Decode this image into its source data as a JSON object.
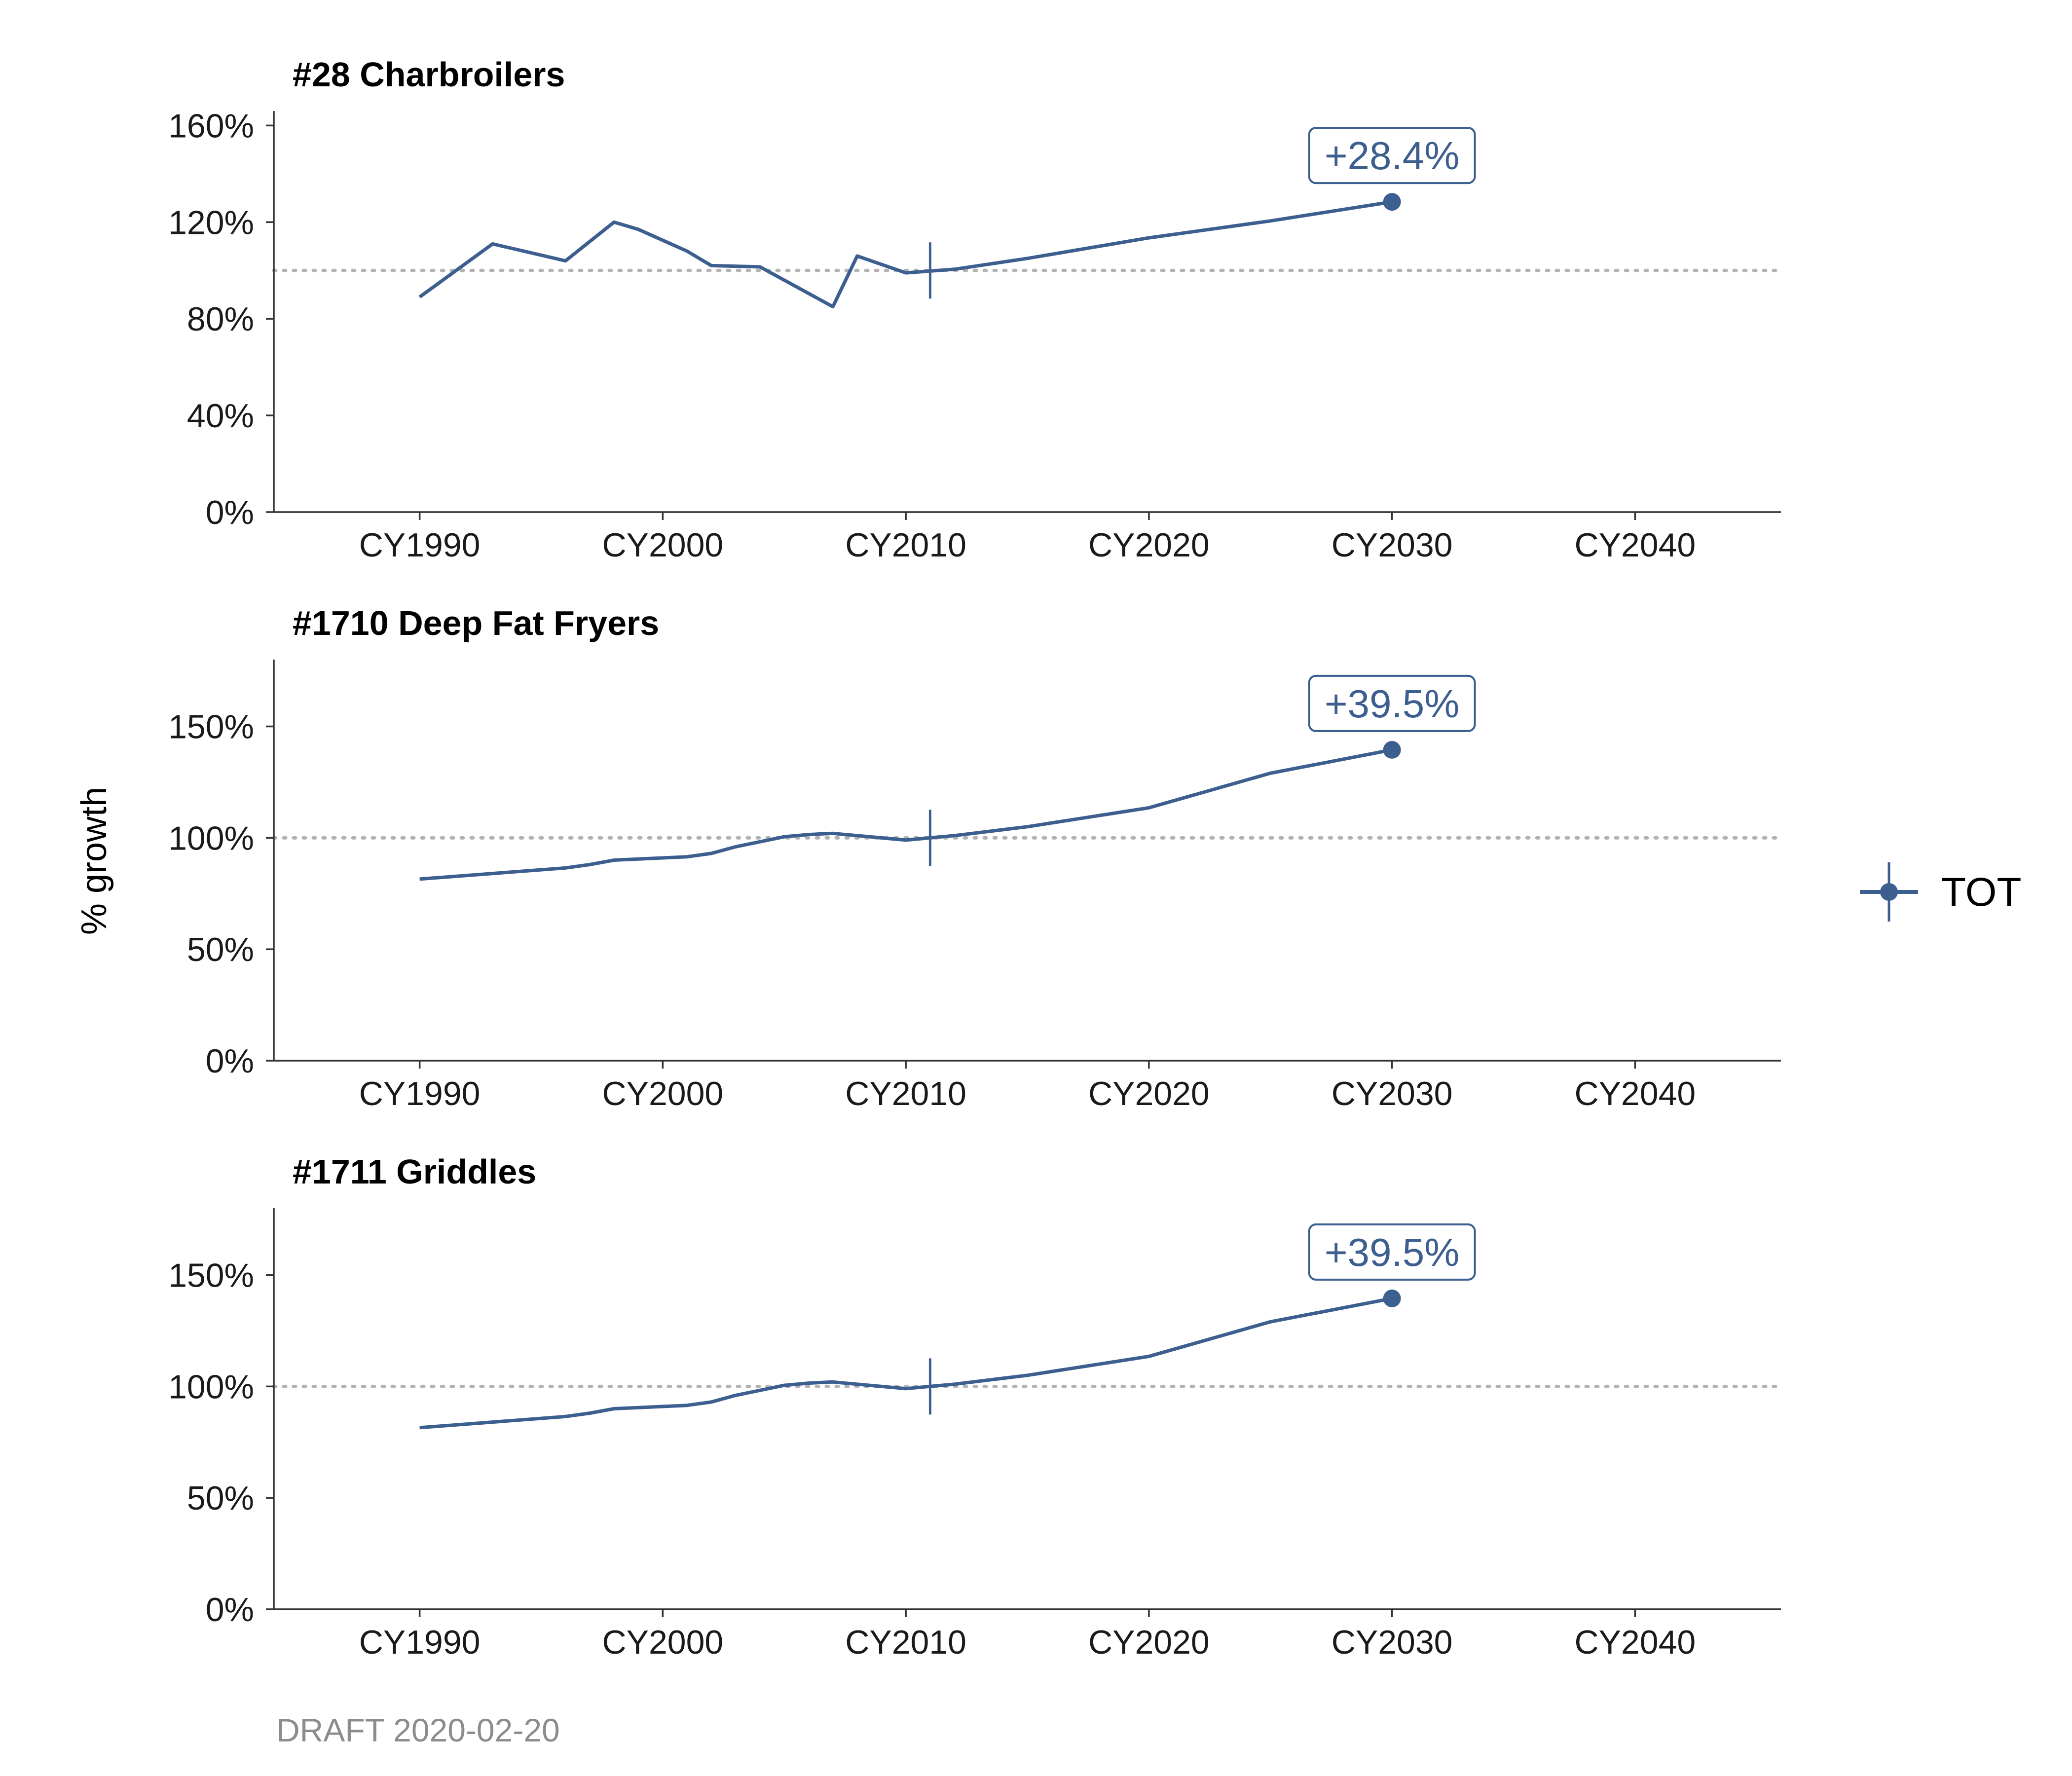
{
  "y_axis_label": "% growth",
  "caption": "DRAFT 2020-02-20",
  "legend": {
    "label": "TOT"
  },
  "colors": {
    "series": "#3d5f8f",
    "reference_line": "#b3b3b3",
    "axis": "#333333",
    "caption": "#8c8c8c"
  },
  "chart_data": [
    {
      "type": "line",
      "title": "#28 Charbroilers",
      "ylim": [
        0,
        1.66
      ],
      "yticks": [
        0,
        0.4,
        0.8,
        1.2,
        1.6
      ],
      "ytick_labels": [
        "0%",
        "40%",
        "80%",
        "120%",
        "160%"
      ],
      "xlim": [
        1984,
        2046
      ],
      "xticks": [
        1990,
        2000,
        2010,
        2020,
        2030,
        2040
      ],
      "xtick_labels": [
        "CY1990",
        "CY2000",
        "CY2010",
        "CY2020",
        "CY2030",
        "CY2040"
      ],
      "reference_line": 1.0,
      "base_year_marker": 2011,
      "series": [
        {
          "name": "TOT",
          "x": [
            1990,
            1993,
            1996,
            1998,
            1999,
            2001,
            2002,
            2004,
            2007,
            2008,
            2010,
            2012,
            2015,
            2020,
            2025,
            2030
          ],
          "y": [
            0.89,
            1.11,
            1.04,
            1.2,
            1.17,
            1.08,
            1.02,
            1.015,
            0.85,
            1.06,
            0.99,
            1.005,
            1.05,
            1.135,
            1.205,
            1.284
          ]
        }
      ],
      "endpoint": {
        "x": 2030,
        "y": 1.284,
        "label": "+28.4%"
      }
    },
    {
      "type": "line",
      "title": "#1710 Deep Fat Fryers",
      "ylim": [
        0,
        1.8
      ],
      "yticks": [
        0,
        0.5,
        1.0,
        1.5
      ],
      "ytick_labels": [
        "0%",
        "50%",
        "100%",
        "150%"
      ],
      "xlim": [
        1984,
        2046
      ],
      "xticks": [
        1990,
        2000,
        2010,
        2020,
        2030,
        2040
      ],
      "xtick_labels": [
        "CY1990",
        "CY2000",
        "CY2010",
        "CY2020",
        "CY2030",
        "CY2040"
      ],
      "reference_line": 1.0,
      "base_year_marker": 2011,
      "series": [
        {
          "name": "TOT",
          "x": [
            1990,
            1993,
            1996,
            1997,
            1998,
            2000,
            2001,
            2002,
            2003,
            2005,
            2006,
            2007,
            2010,
            2012,
            2015,
            2020,
            2025,
            2030
          ],
          "y": [
            0.815,
            0.84,
            0.865,
            0.88,
            0.9,
            0.91,
            0.915,
            0.93,
            0.96,
            1.005,
            1.015,
            1.02,
            0.99,
            1.01,
            1.05,
            1.135,
            1.29,
            1.395
          ]
        }
      ],
      "endpoint": {
        "x": 2030,
        "y": 1.395,
        "label": "+39.5%"
      }
    },
    {
      "type": "line",
      "title": "#1711 Griddles",
      "ylim": [
        0,
        1.8
      ],
      "yticks": [
        0,
        0.5,
        1.0,
        1.5
      ],
      "ytick_labels": [
        "0%",
        "50%",
        "100%",
        "150%"
      ],
      "xlim": [
        1984,
        2046
      ],
      "xticks": [
        1990,
        2000,
        2010,
        2020,
        2030,
        2040
      ],
      "xtick_labels": [
        "CY1990",
        "CY2000",
        "CY2010",
        "CY2020",
        "CY2030",
        "CY2040"
      ],
      "reference_line": 1.0,
      "base_year_marker": 2011,
      "series": [
        {
          "name": "TOT",
          "x": [
            1990,
            1993,
            1996,
            1997,
            1998,
            2000,
            2001,
            2002,
            2003,
            2005,
            2006,
            2007,
            2010,
            2012,
            2015,
            2020,
            2025,
            2030
          ],
          "y": [
            0.815,
            0.84,
            0.865,
            0.88,
            0.9,
            0.91,
            0.915,
            0.93,
            0.96,
            1.005,
            1.015,
            1.02,
            0.99,
            1.01,
            1.05,
            1.135,
            1.29,
            1.395
          ]
        }
      ],
      "endpoint": {
        "x": 2030,
        "y": 1.395,
        "label": "+39.5%"
      }
    }
  ]
}
